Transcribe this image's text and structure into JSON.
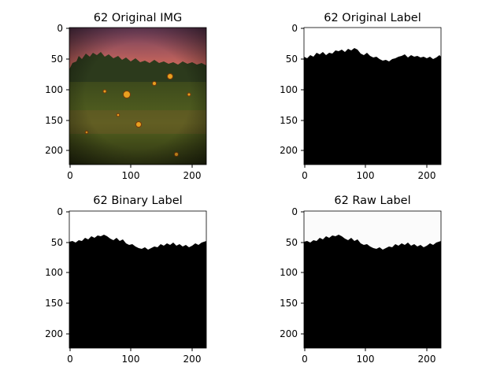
{
  "figure": {
    "panels": [
      {
        "title": "62 Original IMG",
        "content": "photo: sunset sky over a field of sunflowers with a tree line",
        "x_ticks": [
          "0",
          "100",
          "200"
        ],
        "y_ticks": [
          "0",
          "50",
          "100",
          "150",
          "200"
        ]
      },
      {
        "title": "62 Original Label",
        "content": "binary mask: white sky above, black below a jagged horizon",
        "x_ticks": [
          "0",
          "100",
          "200"
        ],
        "y_ticks": [
          "0",
          "50",
          "100",
          "150",
          "200"
        ]
      },
      {
        "title": "62 Binary Label",
        "content": "binary mask: white sky above, black below a jagged horizon",
        "x_ticks": [
          "0",
          "100",
          "200"
        ],
        "y_ticks": [
          "0",
          "50",
          "100",
          "150",
          "200"
        ]
      },
      {
        "title": "62 Raw Label",
        "content": "grayscale mask: near-white sky above, black below a jagged horizon",
        "x_ticks": [
          "0",
          "100",
          "200"
        ],
        "y_ticks": [
          "0",
          "50",
          "100",
          "150",
          "200"
        ]
      }
    ]
  },
  "colors": {
    "sky_top": "#7a4a62",
    "sky_glow": "#f08a5a",
    "tree_line": "#2c3a1c",
    "field": "#4d5a22",
    "sunflower": "#e8a020",
    "mask_sky": "#ffffff",
    "raw_sky": "#fbfbfb",
    "mask_ground": "#000000"
  },
  "icons": {
    "photo": "sunflower-field-image",
    "mask": "segmentation-mask-image"
  }
}
